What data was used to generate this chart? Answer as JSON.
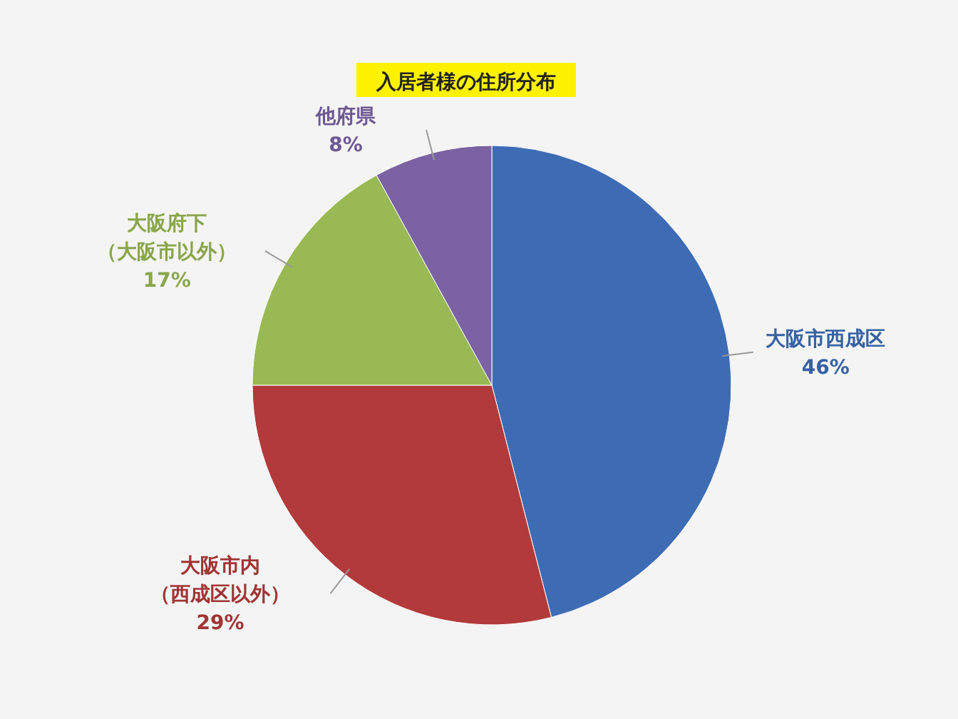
{
  "chart_data": {
    "type": "pie",
    "title": "入居者様の住所分布",
    "categories": [
      "大阪市西成区",
      "大阪市内（西成区以外）",
      "大阪府下（大阪市以外）",
      "他府県"
    ],
    "values": [
      46,
      29,
      17,
      8
    ],
    "value_labels": [
      "46%",
      "29%",
      "17%",
      "8%"
    ],
    "colors": [
      "#3d6cb5",
      "#b33a3a",
      "#98b954",
      "#7a62a3"
    ]
  }
}
